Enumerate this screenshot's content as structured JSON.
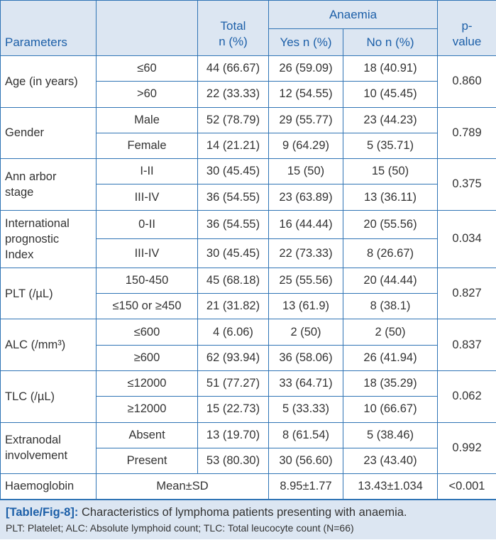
{
  "header": {
    "parameters": "Parameters",
    "total": [
      "Total",
      "n (%)"
    ],
    "anaemia": "Anaemia",
    "yes": "Yes n (%)",
    "no": "No n (%)",
    "p_value": [
      "p-",
      "value"
    ]
  },
  "groups": [
    {
      "label": [
        "Age (in years)"
      ],
      "p": "0.860",
      "rows": [
        [
          "≤60",
          "44 (66.67)",
          "26 (59.09)",
          "18 (40.91)"
        ],
        [
          ">60",
          "22 (33.33)",
          "12 (54.55)",
          "10 (45.45)"
        ]
      ]
    },
    {
      "label": [
        "Gender"
      ],
      "p": "0.789",
      "rows": [
        [
          "Male",
          "52 (78.79)",
          "29 (55.77)",
          "23 (44.23)"
        ],
        [
          "Female",
          "14 (21.21)",
          "9 (64.29)",
          "5 (35.71)"
        ]
      ]
    },
    {
      "label": [
        "Ann arbor",
        "stage"
      ],
      "p": "0.375",
      "rows": [
        [
          "I-II",
          "30 (45.45)",
          "15 (50)",
          "15 (50)"
        ],
        [
          "III-IV",
          "36 (54.55)",
          "23 (63.89)",
          "13 (36.11)"
        ]
      ]
    },
    {
      "label": [
        "International",
        "prognostic",
        "Index"
      ],
      "p": "0.034",
      "rows": [
        [
          "0-II",
          "36 (54.55)",
          "16 (44.44)",
          "20 (55.56)"
        ],
        [
          "III-IV",
          "30 (45.45)",
          "22 (73.33)",
          "8 (26.67)"
        ]
      ]
    },
    {
      "label": [
        "PLT (/µL)"
      ],
      "p": "0.827",
      "rows": [
        [
          "150-450",
          "45 (68.18)",
          "25 (55.56)",
          "20 (44.44)"
        ],
        [
          "≤150 or ≥450",
          "21 (31.82)",
          "13 (61.9)",
          "8 (38.1)"
        ]
      ]
    },
    {
      "label": [
        "ALC (/mm³)"
      ],
      "p": "0.837",
      "rows": [
        [
          "≤600",
          "4 (6.06)",
          "2 (50)",
          "2 (50)"
        ],
        [
          "≥600",
          "62 (93.94)",
          "36 (58.06)",
          "26 (41.94)"
        ]
      ]
    },
    {
      "label": [
        "TLC (/µL)"
      ],
      "p": "0.062",
      "rows": [
        [
          "≤12000",
          "51 (77.27)",
          "33 (64.71)",
          "18 (35.29)"
        ],
        [
          "≥12000",
          "15 (22.73)",
          "5 (33.33)",
          "10 (66.67)"
        ]
      ]
    },
    {
      "label": [
        "Extranodal",
        "involvement"
      ],
      "p": "0.992",
      "rows": [
        [
          "Absent",
          "13 (19.70)",
          "8 (61.54)",
          "5 (38.46)"
        ],
        [
          "Present",
          "53 (80.30)",
          "30 (56.60)",
          "23 (43.40)"
        ]
      ]
    }
  ],
  "haemoglobin": {
    "label": "Haemoglobin",
    "stat": "Mean±SD",
    "yes": "8.95±1.77",
    "no": "13.43±1.034",
    "p": "<0.001"
  },
  "caption": {
    "label": "[Table/Fig-8]:",
    "text": "Characteristics of lymphoma patients presenting with anaemia.",
    "note": "PLT: Platelet; ALC: Absolute lymphoid count; TLC: Total leucocyte count (N=66)"
  }
}
